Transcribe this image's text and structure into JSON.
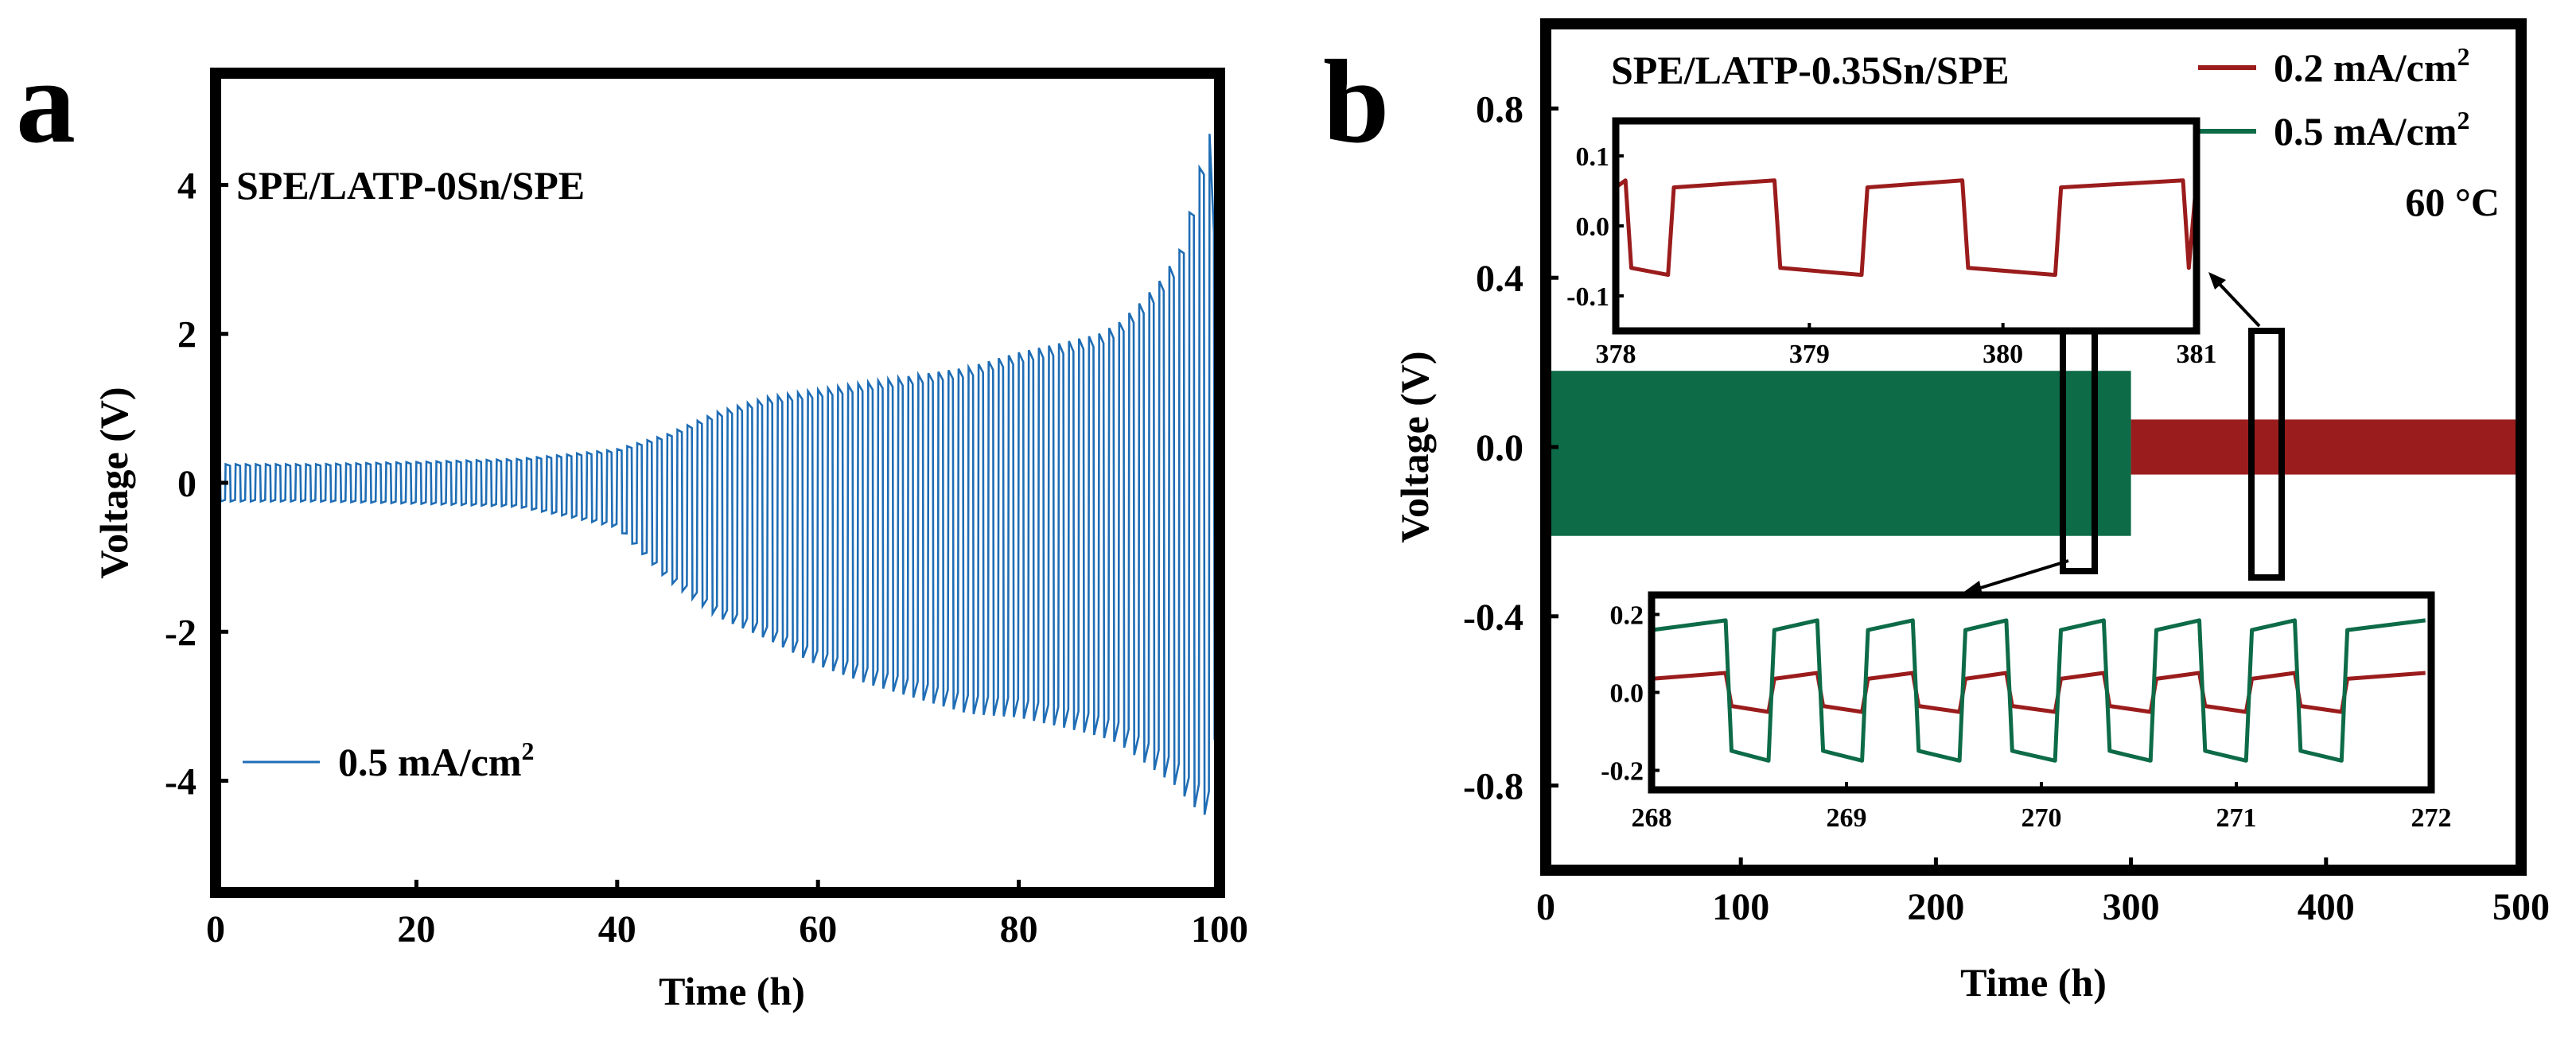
{
  "panels": [
    {
      "letter": "a",
      "chart_data": {
        "type": "line",
        "title": "",
        "annotation": "SPE/LATP-0Sn/SPE",
        "xlabel": "Time (h)",
        "ylabel": "Voltage (V)",
        "xlim": [
          0,
          100
        ],
        "ylim": [
          -5.5,
          5.5
        ],
        "xticks": [
          0,
          20,
          40,
          60,
          80,
          100
        ],
        "xtick_labels": [
          "0",
          "20",
          "40",
          "60",
          "80",
          "100"
        ],
        "yticks": [
          4,
          2,
          0,
          -2,
          -4
        ],
        "ytick_labels": [
          "4",
          "2",
          "0",
          "-2",
          "-4"
        ],
        "legend_position": "lower-left",
        "series": [
          {
            "name": "0.5 mA/cm2",
            "legend_text": "0.5 mA/cm",
            "legend_superscript": "2",
            "color": "#1f6db5",
            "cycle_period_h": 1,
            "envelope": {
              "t": [
                0,
                10,
                20,
                30,
                35,
                40,
                45,
                50,
                55,
                60,
                65,
                70,
                75,
                80,
                85,
                88,
                90,
                92,
                94,
                96,
                97,
                98,
                99,
                100
              ],
              "upper": [
                0.25,
                0.25,
                0.28,
                0.32,
                0.38,
                0.45,
                0.65,
                0.95,
                1.15,
                1.25,
                1.35,
                1.45,
                1.55,
                1.75,
                1.9,
                2.0,
                2.15,
                2.4,
                2.7,
                3.1,
                3.6,
                4.2,
                4.8,
                2.5
              ],
              "lower": [
                -0.25,
                -0.25,
                -0.28,
                -0.32,
                -0.45,
                -0.6,
                -1.3,
                -1.8,
                -2.1,
                -2.45,
                -2.7,
                -2.9,
                -3.1,
                -3.15,
                -3.3,
                -3.4,
                -3.5,
                -3.7,
                -3.9,
                -4.1,
                -4.3,
                -4.4,
                -4.5,
                -2.6
              ]
            }
          }
        ]
      }
    },
    {
      "letter": "b",
      "chart_data": {
        "type": "line",
        "title": "",
        "annotation": "SPE/LATP-0.35Sn/SPE",
        "temperature_label": "60 °C",
        "xlabel": "Time (h)",
        "ylabel": "Voltage (V)",
        "xlim": [
          0,
          500
        ],
        "ylim": [
          -1.0,
          1.0
        ],
        "xticks": [
          0,
          100,
          200,
          300,
          400,
          500
        ],
        "xtick_labels": [
          "0",
          "100",
          "200",
          "300",
          "400",
          "500"
        ],
        "yticks": [
          0.8,
          0.4,
          0.0,
          -0.4,
          -0.8
        ],
        "ytick_labels": [
          "0.8",
          "0.4",
          "0.0",
          "-0.4",
          "-0.8"
        ],
        "legend_position": "top-right",
        "series": [
          {
            "name": "0.2 mA/cm2",
            "legend_text": "0.2 mA/cm",
            "legend_superscript": "2",
            "color": "#9b1c1c",
            "t_range": [
              300,
              500
            ],
            "amplitude_V": 0.065
          },
          {
            "name": "0.5 mA/cm2",
            "legend_text": "0.5 mA/cm",
            "legend_superscript": "2",
            "color": "#0d6b48",
            "t_range": [
              0,
              300
            ],
            "upper_V": [
              0.18,
              0.18
            ],
            "lower_V": [
              -0.21,
              -0.2
            ]
          }
        ],
        "insets": [
          {
            "name": "inset-upper",
            "xlim": [
              378,
              381
            ],
            "ylim": [
              -0.15,
              0.15
            ],
            "xticks": [
              378,
              379,
              380,
              381
            ],
            "xtick_labels": [
              "378",
              "379",
              "380",
              "381"
            ],
            "yticks": [
              0.1,
              0.0,
              -0.1
            ],
            "ytick_labels": [
              "0.1",
              "0.0",
              "-0.1"
            ],
            "source_window_h": [
              370,
              385
            ],
            "series": [
              {
                "name": "0.2 mA/cm2",
                "color": "#9b1c1c",
                "high_V": [
                  0.055,
                  0.065
                ],
                "low_V": [
                  -0.06,
                  -0.07
                ],
                "transitions_h": [
                  378.38,
                  378.42,
                  378.85,
                  378.88,
                  379.31,
                  379.35,
                  379.82,
                  379.85,
                  380.32,
                  380.36,
                  380.96,
                  380.99
                ]
              }
            ]
          },
          {
            "name": "inset-lower",
            "xlim": [
              268,
              272
            ],
            "ylim": [
              -0.25,
              0.25
            ],
            "xticks": [
              268,
              269,
              270,
              271,
              272
            ],
            "xtick_labels": [
              "268",
              "269",
              "270",
              "271",
              "272"
            ],
            "yticks": [
              0.2,
              0.0,
              -0.2
            ],
            "ytick_labels": [
              "0.2",
              "0.0",
              "-0.2"
            ],
            "source_window_h": [
              265,
              280
            ],
            "series": [
              {
                "name": "0.2 mA/cm2",
                "color": "#9b1c1c",
                "high_V": [
                  0.035,
                  0.05
                ],
                "low_V": [
                  -0.035,
                  -0.05
                ]
              },
              {
                "name": "0.5 mA/cm2",
                "color": "#0d6b48",
                "high_V": [
                  0.16,
                  0.185
                ],
                "low_V": [
                  -0.15,
                  -0.175
                ]
              }
            ],
            "transitions_h": [
              268.41,
              268.63,
              268.88,
              269.11,
              269.37,
              269.61,
              269.85,
              270.1,
              270.35,
              270.59,
              270.84,
              271.08,
              271.33,
              271.57
            ]
          }
        ]
      }
    }
  ]
}
